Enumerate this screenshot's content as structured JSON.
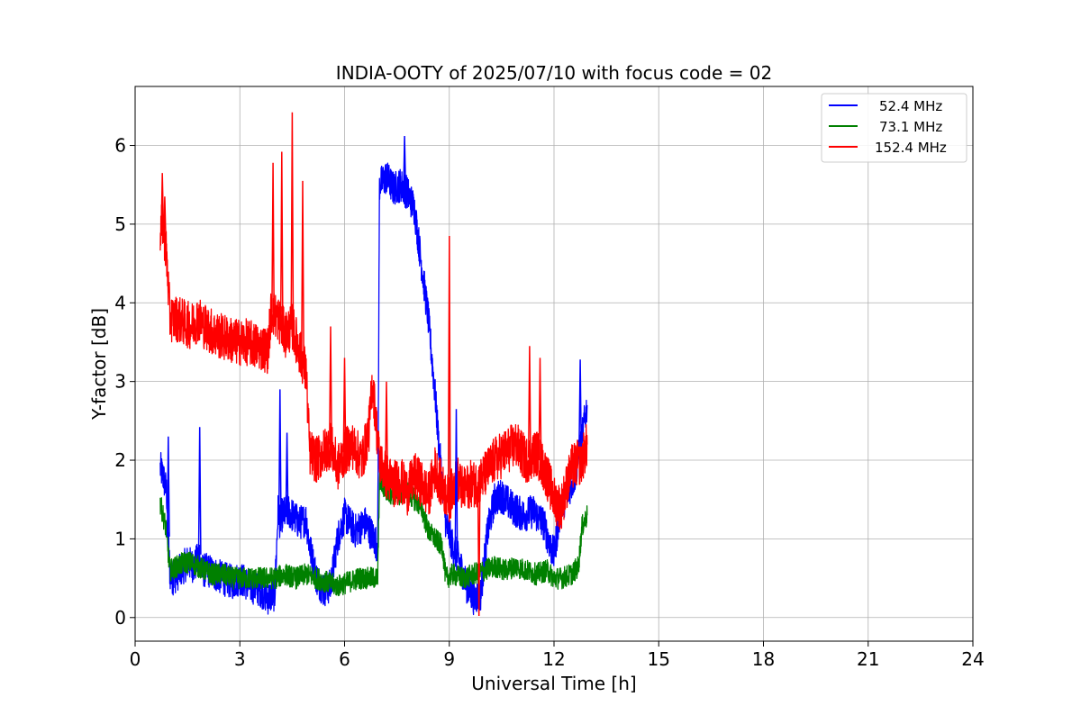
{
  "chart_data": {
    "type": "line",
    "title": "INDIA-OOTY of 2025/07/10 with focus code = 02",
    "xlabel": "Universal Time [h]",
    "ylabel": "Y-factor [dB]",
    "xlim": [
      0,
      24
    ],
    "ylim": [
      -0.3,
      6.75
    ],
    "xticks": [
      0,
      3,
      6,
      9,
      12,
      15,
      18,
      21,
      24
    ],
    "xtick_labels": [
      "0",
      "3",
      "6",
      "9",
      "12",
      "15",
      "18",
      "21",
      "24"
    ],
    "yticks": [
      0,
      1,
      2,
      3,
      4,
      5,
      6
    ],
    "ytick_labels": [
      "0",
      "1",
      "2",
      "3",
      "4",
      "5",
      "6"
    ],
    "grid": true,
    "legend_position": "top-right",
    "series": [
      {
        "name": "52.4 MHz",
        "color": "#0000ff",
        "x": [
          0.72,
          0.8,
          0.9,
          0.97,
          1.0,
          1.1,
          1.3,
          1.5,
          1.7,
          1.85,
          1.9,
          2.1,
          2.3,
          2.5,
          2.8,
          3.0,
          3.3,
          3.6,
          3.8,
          4.0,
          4.1,
          4.15,
          4.2,
          4.4,
          4.7,
          4.9,
          5.0,
          5.2,
          5.4,
          5.6,
          5.8,
          6.0,
          6.3,
          6.6,
          6.85,
          6.95,
          7.0,
          7.2,
          7.4,
          7.6,
          7.8,
          8.0,
          8.2,
          8.4,
          8.5,
          8.6,
          8.7,
          8.9,
          9.1,
          9.3,
          9.5,
          9.7,
          9.9,
          10.1,
          10.3,
          10.5,
          10.8,
          11.1,
          11.4,
          11.7,
          11.9,
          12.0,
          12.2,
          12.4,
          12.6,
          12.8,
          12.95
        ],
        "y": [
          1.9,
          1.8,
          1.6,
          0.8,
          0.55,
          0.5,
          0.6,
          0.7,
          0.65,
          0.8,
          0.6,
          0.6,
          0.55,
          0.5,
          0.45,
          0.5,
          0.4,
          0.35,
          0.25,
          0.3,
          1.4,
          1.2,
          1.3,
          1.35,
          1.2,
          1.25,
          0.9,
          0.5,
          0.35,
          0.4,
          1.0,
          1.3,
          1.1,
          1.2,
          1.0,
          0.9,
          5.5,
          5.6,
          5.45,
          5.5,
          5.4,
          5.2,
          4.5,
          3.8,
          3.3,
          2.8,
          2.2,
          1.2,
          0.9,
          0.7,
          0.4,
          0.25,
          0.3,
          1.1,
          1.5,
          1.55,
          1.4,
          1.3,
          1.35,
          1.2,
          0.9,
          0.8,
          1.4,
          1.6,
          1.8,
          2.3,
          2.7
        ]
      },
      {
        "name": "73.1 MHz",
        "color": "#008000",
        "x": [
          0.72,
          0.8,
          0.9,
          0.97,
          1.0,
          1.2,
          1.4,
          1.6,
          1.8,
          2.0,
          2.2,
          2.5,
          2.8,
          3.1,
          3.4,
          3.7,
          4.0,
          4.3,
          4.6,
          4.9,
          5.2,
          5.5,
          5.8,
          6.1,
          6.4,
          6.7,
          6.95,
          7.0,
          7.2,
          7.5,
          7.8,
          8.0,
          8.2,
          8.4,
          8.6,
          8.8,
          8.9,
          9.1,
          9.4,
          9.7,
          10.0,
          10.3,
          10.6,
          10.9,
          11.2,
          11.5,
          11.8,
          12.0,
          12.2,
          12.5,
          12.7,
          12.8,
          12.95
        ],
        "y": [
          1.45,
          1.3,
          1.1,
          0.7,
          0.6,
          0.65,
          0.7,
          0.7,
          0.65,
          0.6,
          0.55,
          0.55,
          0.5,
          0.5,
          0.5,
          0.5,
          0.5,
          0.55,
          0.5,
          0.55,
          0.5,
          0.45,
          0.4,
          0.45,
          0.5,
          0.5,
          0.5,
          1.75,
          1.6,
          1.55,
          1.6,
          1.5,
          1.4,
          1.1,
          1.0,
          0.9,
          0.5,
          0.55,
          0.5,
          0.55,
          0.6,
          0.65,
          0.6,
          0.65,
          0.6,
          0.55,
          0.6,
          0.5,
          0.5,
          0.55,
          0.65,
          1.15,
          1.3
        ]
      },
      {
        "name": "152.4 MHz",
        "color": "#ff0000",
        "x": [
          0.72,
          0.8,
          0.9,
          0.95,
          1.0,
          1.2,
          1.4,
          1.6,
          1.8,
          2.0,
          2.3,
          2.6,
          2.9,
          3.2,
          3.5,
          3.8,
          3.9,
          4.1,
          4.3,
          4.5,
          4.7,
          4.9,
          5.0,
          5.2,
          5.4,
          5.6,
          5.8,
          6.0,
          6.2,
          6.5,
          6.7,
          6.8,
          6.9,
          7.0,
          7.2,
          7.4,
          7.6,
          7.8,
          8.0,
          8.2,
          8.4,
          8.6,
          8.8,
          9.0,
          9.2,
          9.4,
          9.6,
          9.8,
          10.0,
          10.3,
          10.6,
          10.9,
          11.2,
          11.5,
          11.8,
          12.0,
          12.2,
          12.5,
          12.8,
          12.95
        ],
        "y": [
          4.9,
          5.0,
          4.6,
          4.2,
          3.8,
          3.8,
          3.75,
          3.7,
          3.8,
          3.7,
          3.6,
          3.55,
          3.5,
          3.5,
          3.45,
          3.4,
          3.9,
          3.8,
          3.6,
          3.7,
          3.4,
          3.1,
          2.1,
          2.0,
          2.1,
          2.2,
          1.9,
          2.1,
          2.2,
          2.0,
          2.4,
          3.0,
          2.5,
          2.0,
          1.8,
          1.7,
          1.75,
          1.6,
          1.8,
          1.7,
          1.55,
          1.9,
          1.65,
          1.5,
          1.8,
          1.6,
          1.7,
          1.7,
          1.8,
          2.0,
          2.1,
          2.2,
          2.0,
          2.1,
          1.8,
          1.5,
          1.4,
          1.9,
          2.0,
          2.2
        ]
      }
    ],
    "spikes": [
      {
        "series": "152.4 MHz",
        "x": [
          0.78,
          0.85,
          4.5,
          4.2,
          3.95,
          4.8,
          5.6,
          6.0,
          7.2,
          9.0,
          9.85,
          11.3,
          11.6
        ],
        "y": [
          5.65,
          5.35,
          6.42,
          5.92,
          5.78,
          5.55,
          3.7,
          3.3,
          3.0,
          4.85,
          0.02,
          3.45,
          3.3
        ]
      },
      {
        "series": "52.4 MHz",
        "x": [
          0.95,
          1.85,
          4.15,
          4.35,
          7.72,
          9.2,
          12.75
        ],
        "y": [
          2.3,
          2.42,
          2.9,
          2.35,
          6.12,
          2.65,
          3.28
        ]
      }
    ]
  }
}
